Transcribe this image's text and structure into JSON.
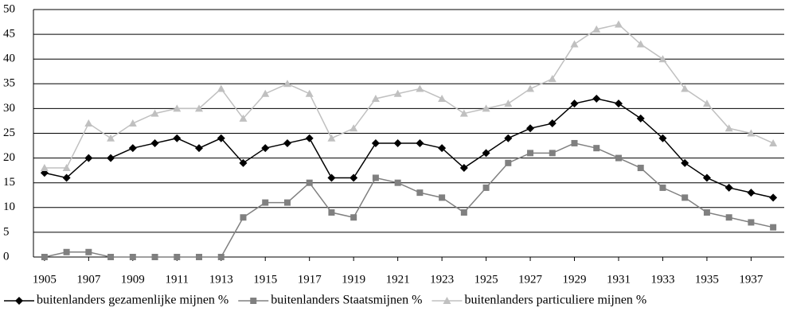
{
  "chart_data": {
    "type": "line",
    "x": [
      1905,
      1906,
      1907,
      1908,
      1909,
      1910,
      1911,
      1912,
      1913,
      1914,
      1915,
      1916,
      1917,
      1918,
      1919,
      1920,
      1921,
      1922,
      1923,
      1924,
      1925,
      1926,
      1927,
      1928,
      1929,
      1930,
      1931,
      1932,
      1933,
      1934,
      1935,
      1936,
      1937,
      1938
    ],
    "xlim": [
      1904.5,
      1938.5
    ],
    "xticks": [
      1905,
      1907,
      1909,
      1911,
      1913,
      1915,
      1917,
      1919,
      1921,
      1923,
      1925,
      1927,
      1929,
      1931,
      1933,
      1935,
      1937
    ],
    "ylim": [
      0,
      50
    ],
    "yticks": [
      0,
      5,
      10,
      15,
      20,
      25,
      30,
      35,
      40,
      45,
      50
    ],
    "grid": true,
    "legend": "bottom",
    "series": [
      {
        "name": "buitenlanders gezamenlijke mijnen %",
        "color": "#000000",
        "marker": "diamond",
        "values": [
          17,
          16,
          20,
          20,
          22,
          23,
          24,
          22,
          24,
          19,
          22,
          23,
          24,
          16,
          16,
          23,
          23,
          23,
          22,
          18,
          21,
          24,
          26,
          27,
          31,
          32,
          31,
          28,
          24,
          19,
          16,
          14,
          13,
          12
        ]
      },
      {
        "name": "buitenlanders Staatsmijnen %",
        "color": "#808080",
        "marker": "square",
        "values": [
          0,
          1,
          1,
          0,
          0,
          0,
          0,
          0,
          0,
          8,
          11,
          11,
          15,
          9,
          8,
          16,
          15,
          13,
          12,
          9,
          14,
          19,
          21,
          21,
          23,
          22,
          20,
          18,
          14,
          12,
          9,
          8,
          7,
          6
        ]
      },
      {
        "name": "buitenlanders particuliere mijnen %",
        "color": "#c0c0c0",
        "marker": "triangle",
        "values": [
          18,
          18,
          27,
          24,
          27,
          29,
          30,
          30,
          34,
          28,
          33,
          35,
          33,
          24,
          26,
          32,
          33,
          34,
          32,
          29,
          30,
          31,
          34,
          36,
          43,
          46,
          47,
          43,
          40,
          34,
          31,
          26,
          25,
          23
        ]
      }
    ]
  }
}
